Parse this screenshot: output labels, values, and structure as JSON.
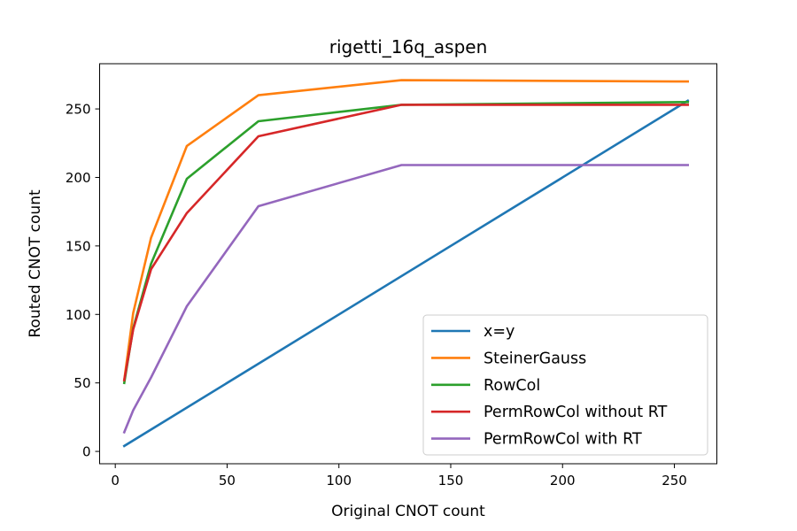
{
  "chart_data": {
    "type": "line",
    "title": "rigetti_16q_aspen",
    "xlabel": "Original CNOT count",
    "ylabel": "Routed CNOT count",
    "xlim": [
      -7,
      269
    ],
    "ylim": [
      -9,
      283
    ],
    "xticks": [
      0,
      50,
      100,
      150,
      200,
      250
    ],
    "yticks": [
      0,
      50,
      100,
      150,
      200,
      250
    ],
    "legend": "lower right",
    "grid": false,
    "series": [
      {
        "name": "x=y",
        "color": "#1f77b4",
        "x": [
          4,
          256
        ],
        "y": [
          4,
          256
        ]
      },
      {
        "name": "SteinerGauss",
        "color": "#ff7f0e",
        "x": [
          4,
          8,
          16,
          32,
          64,
          128,
          256
        ],
        "y": [
          52,
          101,
          156,
          223,
          260,
          271,
          270
        ]
      },
      {
        "name": "RowCol",
        "color": "#2ca02c",
        "x": [
          4,
          8,
          16,
          32,
          64,
          128,
          256
        ],
        "y": [
          50,
          90,
          137,
          199,
          241,
          253,
          255
        ]
      },
      {
        "name": "PermRowCol without RT",
        "color": "#d62728",
        "x": [
          4,
          8,
          16,
          32,
          64,
          128,
          256
        ],
        "y": [
          52,
          89,
          133,
          174,
          230,
          253,
          253
        ]
      },
      {
        "name": "PermRowCol with RT",
        "color": "#9467bd",
        "x": [
          4,
          8,
          16,
          32,
          64,
          128,
          256
        ],
        "y": [
          14,
          30,
          54,
          106,
          179,
          209,
          209
        ]
      }
    ]
  }
}
